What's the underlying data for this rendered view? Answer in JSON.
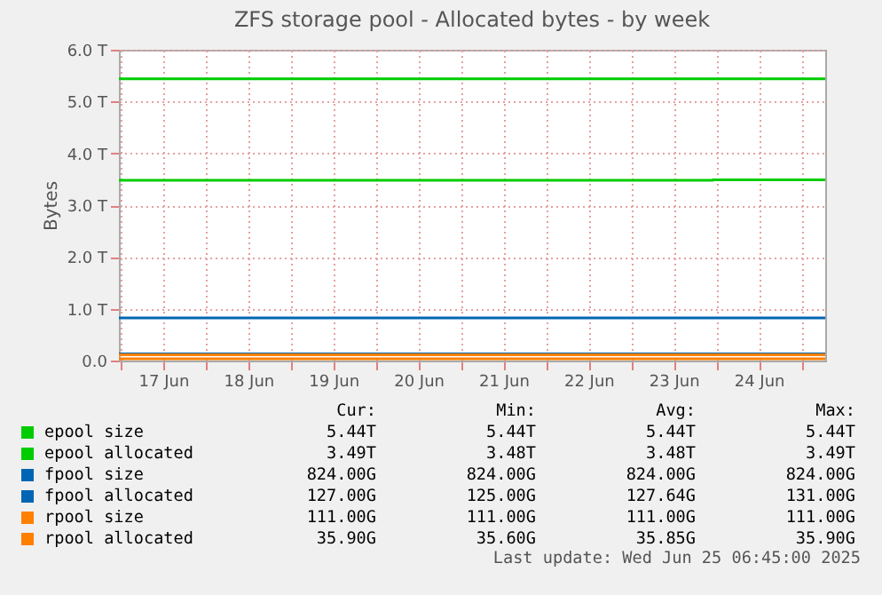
{
  "chart_data": {
    "type": "line",
    "title": "ZFS storage pool - Allocated bytes - by week",
    "ylabel": "Bytes",
    "xlim": [
      "2025-06-16T23:30",
      "2025-06-25T06:45"
    ],
    "xticks": [
      {
        "value": "2025-06-17T00:00",
        "label": null
      },
      {
        "value": "2025-06-17T12:00",
        "label": "17 Jun"
      },
      {
        "value": "2025-06-18T00:00",
        "label": null
      },
      {
        "value": "2025-06-18T12:00",
        "label": "18 Jun"
      },
      {
        "value": "2025-06-19T00:00",
        "label": null
      },
      {
        "value": "2025-06-19T12:00",
        "label": "19 Jun"
      },
      {
        "value": "2025-06-20T00:00",
        "label": null
      },
      {
        "value": "2025-06-20T12:00",
        "label": "20 Jun"
      },
      {
        "value": "2025-06-21T00:00",
        "label": null
      },
      {
        "value": "2025-06-21T12:00",
        "label": "21 Jun"
      },
      {
        "value": "2025-06-22T00:00",
        "label": null
      },
      {
        "value": "2025-06-22T12:00",
        "label": "22 Jun"
      },
      {
        "value": "2025-06-23T00:00",
        "label": null
      },
      {
        "value": "2025-06-23T12:00",
        "label": "23 Jun"
      },
      {
        "value": "2025-06-24T00:00",
        "label": null
      },
      {
        "value": "2025-06-24T12:00",
        "label": "24 Jun"
      },
      {
        "value": "2025-06-25T00:00",
        "label": null
      }
    ],
    "ylim": [
      0,
      6
    ],
    "yticks": [
      {
        "value": 0,
        "label": "0.0"
      },
      {
        "value": 1,
        "label": "1.0 T"
      },
      {
        "value": 2,
        "label": "2.0 T"
      },
      {
        "value": 3,
        "label": "3.0 T"
      },
      {
        "value": 4,
        "label": "4.0 T"
      },
      {
        "value": 5,
        "label": "5.0 T"
      },
      {
        "value": 6,
        "label": "6.0 T"
      }
    ],
    "grid": true,
    "legend": "bottom",
    "marker": "none",
    "line_style": "solid",
    "series": [
      {
        "name": "epool size",
        "color": "#00cc00",
        "x": [
          "2025-06-16T23:30",
          "2025-06-25T06:45"
        ],
        "values": [
          5.44,
          5.44
        ]
      },
      {
        "name": "epool allocated",
        "color": "#00cc00",
        "type": "step",
        "x": [
          "2025-06-16T23:30",
          "2025-06-23T23:00",
          "2025-06-25T06:45"
        ],
        "values": [
          3.48,
          3.49,
          3.49
        ]
      },
      {
        "name": "fpool size",
        "color": "#0066b3",
        "x": [
          "2025-06-16T23:30",
          "2025-06-25T06:45"
        ],
        "values": [
          0.824,
          0.824
        ]
      },
      {
        "name": "fpool allocated",
        "color": "#0066b3",
        "x": [
          "2025-06-16T23:30",
          "2025-06-25T06:45"
        ],
        "values": [
          0.127,
          0.127
        ]
      },
      {
        "name": "rpool size",
        "color": "#ff8000",
        "x": [
          "2025-06-16T23:30",
          "2025-06-25T06:45"
        ],
        "values": [
          0.111,
          0.111
        ]
      },
      {
        "name": "rpool allocated",
        "color": "#ff8000",
        "x": [
          "2025-06-16T23:30",
          "2025-06-25T06:45"
        ],
        "values": [
          0.0359,
          0.0359
        ]
      }
    ],
    "annotations": [
      "Cur:",
      "Min:",
      "Avg:",
      "Max:",
      "5.44T",
      "5.44T",
      "5.44T",
      "5.44T",
      "3.49T",
      "3.48T",
      "3.48T",
      "3.49T",
      "824.00G",
      "824.00G",
      "824.00G",
      "824.00G",
      "127.00G",
      "125.00G",
      "127.64G",
      "131.00G",
      "111.00G",
      "111.00G",
      "111.00G",
      "111.00G",
      "35.90G",
      "35.60G",
      "35.85G",
      "35.90G",
      "Last update: Wed Jun 25 06:45:00 2025"
    ]
  }
}
